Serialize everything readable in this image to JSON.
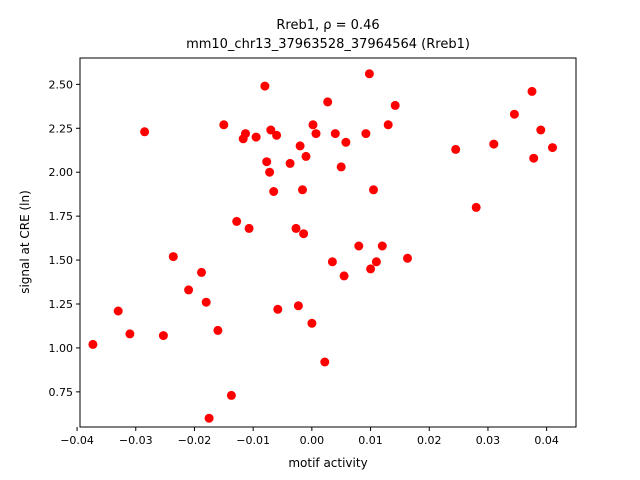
{
  "chart_data": {
    "type": "scatter",
    "title_line1": "Rreb1, ρ = 0.46",
    "title_line2": "mm10_chr13_37963528_37964564 (Rreb1)",
    "xlabel": "motif activity",
    "ylabel": "signal at CRE (ln)",
    "xlim": [
      -0.0395,
      0.045
    ],
    "ylim": [
      0.55,
      2.65
    ],
    "x_ticks": [
      -0.04,
      -0.03,
      -0.02,
      -0.01,
      0.0,
      0.01,
      0.02,
      0.03,
      0.04
    ],
    "x_tick_labels": [
      "−0.04",
      "−0.03",
      "−0.02",
      "−0.01",
      "0.00",
      "0.01",
      "0.02",
      "0.03",
      "0.04"
    ],
    "y_ticks": [
      0.75,
      1.0,
      1.25,
      1.5,
      1.75,
      2.0,
      2.25,
      2.5
    ],
    "y_tick_labels": [
      "0.75",
      "1.00",
      "1.25",
      "1.50",
      "1.75",
      "2.00",
      "2.25",
      "2.50"
    ],
    "grid": false,
    "marker_color": "#ff0000",
    "points": [
      {
        "x": -0.0373,
        "y": 1.02
      },
      {
        "x": -0.033,
        "y": 1.21
      },
      {
        "x": -0.031,
        "y": 1.08
      },
      {
        "x": -0.0285,
        "y": 2.23
      },
      {
        "x": -0.0253,
        "y": 1.07
      },
      {
        "x": -0.0236,
        "y": 1.52
      },
      {
        "x": -0.021,
        "y": 1.33
      },
      {
        "x": -0.0188,
        "y": 1.43
      },
      {
        "x": -0.018,
        "y": 1.26
      },
      {
        "x": -0.0175,
        "y": 0.6
      },
      {
        "x": -0.016,
        "y": 1.1
      },
      {
        "x": -0.015,
        "y": 2.27
      },
      {
        "x": -0.0137,
        "y": 0.73
      },
      {
        "x": -0.0128,
        "y": 1.72
      },
      {
        "x": -0.0117,
        "y": 2.19
      },
      {
        "x": -0.0113,
        "y": 2.22
      },
      {
        "x": -0.0107,
        "y": 1.68
      },
      {
        "x": -0.0095,
        "y": 2.2
      },
      {
        "x": -0.008,
        "y": 2.49
      },
      {
        "x": -0.0077,
        "y": 2.06
      },
      {
        "x": -0.0072,
        "y": 2.0
      },
      {
        "x": -0.007,
        "y": 2.24
      },
      {
        "x": -0.0065,
        "y": 1.89
      },
      {
        "x": -0.006,
        "y": 2.21
      },
      {
        "x": -0.0058,
        "y": 1.22
      },
      {
        "x": -0.0037,
        "y": 2.05
      },
      {
        "x": -0.0027,
        "y": 1.68
      },
      {
        "x": -0.0023,
        "y": 1.24
      },
      {
        "x": -0.002,
        "y": 2.15
      },
      {
        "x": -0.0016,
        "y": 1.9
      },
      {
        "x": -0.0014,
        "y": 1.65
      },
      {
        "x": -0.001,
        "y": 2.09
      },
      {
        "x": 0.0,
        "y": 1.14
      },
      {
        "x": 0.0002,
        "y": 2.27
      },
      {
        "x": 0.0007,
        "y": 2.22
      },
      {
        "x": 0.0022,
        "y": 0.92
      },
      {
        "x": 0.0027,
        "y": 2.4
      },
      {
        "x": 0.0035,
        "y": 1.49
      },
      {
        "x": 0.004,
        "y": 2.22
      },
      {
        "x": 0.005,
        "y": 2.03
      },
      {
        "x": 0.0055,
        "y": 1.41
      },
      {
        "x": 0.0058,
        "y": 2.17
      },
      {
        "x": 0.008,
        "y": 1.58
      },
      {
        "x": 0.0092,
        "y": 2.22
      },
      {
        "x": 0.0098,
        "y": 2.56
      },
      {
        "x": 0.01,
        "y": 1.45
      },
      {
        "x": 0.0105,
        "y": 1.9
      },
      {
        "x": 0.011,
        "y": 1.49
      },
      {
        "x": 0.012,
        "y": 1.58
      },
      {
        "x": 0.013,
        "y": 2.27
      },
      {
        "x": 0.0142,
        "y": 2.38
      },
      {
        "x": 0.0163,
        "y": 1.51
      },
      {
        "x": 0.0245,
        "y": 2.13
      },
      {
        "x": 0.028,
        "y": 1.8
      },
      {
        "x": 0.031,
        "y": 2.16
      },
      {
        "x": 0.0345,
        "y": 2.33
      },
      {
        "x": 0.0375,
        "y": 2.46
      },
      {
        "x": 0.0378,
        "y": 2.08
      },
      {
        "x": 0.039,
        "y": 2.24
      },
      {
        "x": 0.041,
        "y": 2.14
      }
    ]
  }
}
